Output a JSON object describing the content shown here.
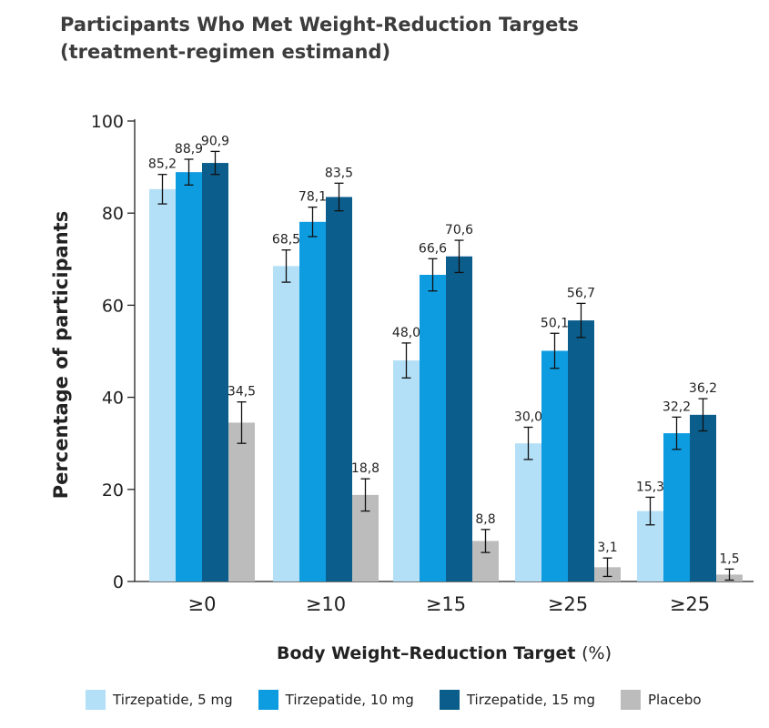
{
  "title_line1": "Participants Who Met Weight-Reduction Targets",
  "title_line2": "(treatment-regimen estimand)",
  "chart_data": {
    "type": "bar",
    "ylabel": "Percentage of participants",
    "xlabel_bold": "Body Weight–Reduction Target",
    "xlabel_unit": "(%)",
    "ylim": [
      0,
      100
    ],
    "yticks": [
      "0",
      "20",
      "40",
      "60",
      "80",
      "100"
    ],
    "categories": [
      "≥0",
      "≥10",
      "≥15",
      "≥25",
      "≥25"
    ],
    "series": [
      {
        "name": "Tirzepatide, 5 mg",
        "color": "#b3dff7",
        "values": [
          85.2,
          68.5,
          48.0,
          30.0,
          15.3
        ],
        "labels": [
          "85,2",
          "68,5",
          "48,0",
          "30,0",
          "15,3"
        ],
        "err": [
          3.2,
          3.5,
          3.8,
          3.5,
          3.0
        ]
      },
      {
        "name": "Tirzepatide, 10 mg",
        "color": "#0d9ce0",
        "values": [
          88.9,
          78.1,
          66.6,
          50.1,
          32.2
        ],
        "labels": [
          "88,9",
          "78,1",
          "66,6",
          "50,1",
          "32,2"
        ],
        "err": [
          2.8,
          3.2,
          3.5,
          3.8,
          3.5
        ]
      },
      {
        "name": "Tirzepatide, 15 mg",
        "color": "#0b5d8c",
        "values": [
          90.9,
          83.5,
          70.6,
          56.7,
          36.2
        ],
        "labels": [
          "90,9",
          "83,5",
          "70,6",
          "56,7",
          "36,2"
        ],
        "err": [
          2.5,
          3.0,
          3.5,
          3.7,
          3.5
        ]
      },
      {
        "name": "Placebo",
        "color": "#bcbcbc",
        "values": [
          34.5,
          18.8,
          8.8,
          3.1,
          1.5
        ],
        "labels": [
          "34,5",
          "18,8",
          "8,8",
          "3,1",
          "1,5"
        ],
        "err": [
          4.5,
          3.5,
          2.5,
          2.0,
          1.2
        ]
      }
    ],
    "grid": false,
    "legend_position": "bottom"
  }
}
